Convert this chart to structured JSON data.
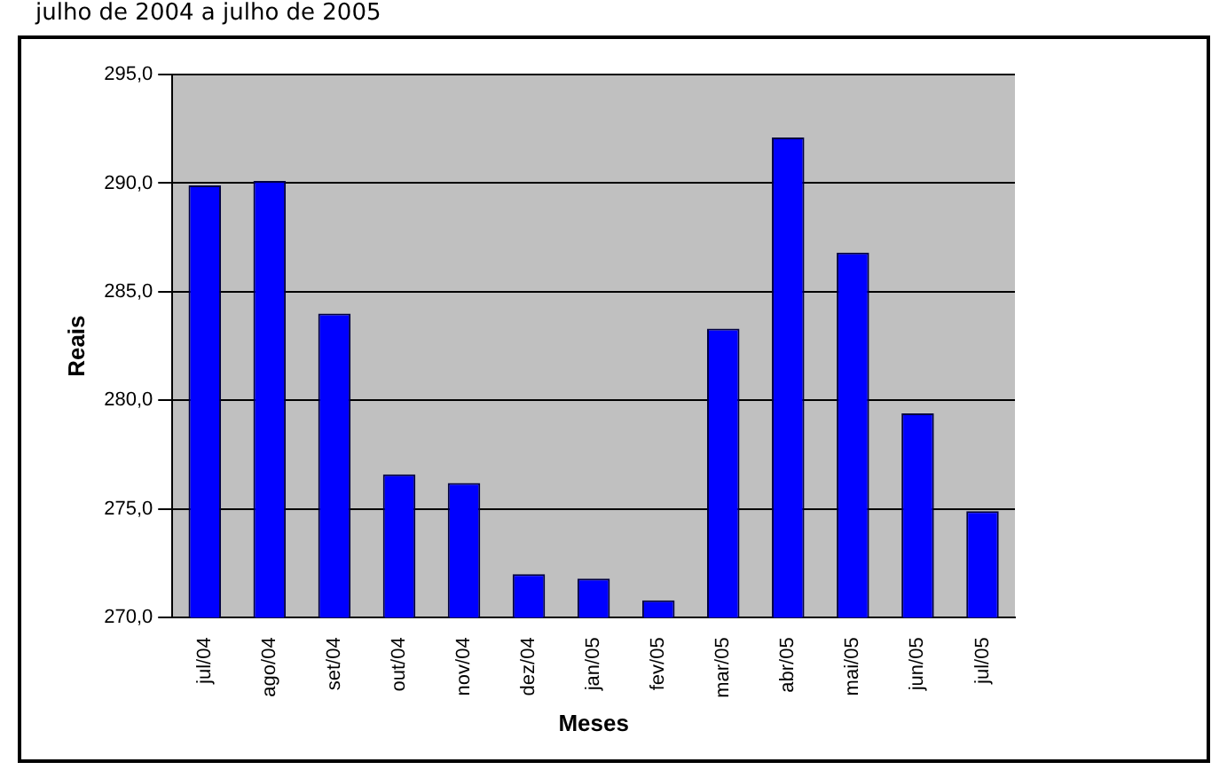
{
  "chart_data": {
    "type": "bar",
    "title": "julho de 2004 a julho de 2005",
    "xlabel": "Meses",
    "ylabel": "Reais",
    "categories": [
      "jul/04",
      "ago/04",
      "set/04",
      "out/04",
      "nov/04",
      "dez/04",
      "jan/05",
      "fev/05",
      "mar/05",
      "abr/05",
      "mai/05",
      "jun/05",
      "jul/05"
    ],
    "values": [
      289.9,
      290.1,
      284.0,
      276.6,
      276.2,
      272.0,
      271.8,
      270.8,
      283.3,
      292.1,
      286.8,
      279.4,
      274.9
    ],
    "color": "#0000ff",
    "ylim": [
      270,
      295
    ],
    "yticks": [
      {
        "value": 270,
        "label": "270,0"
      },
      {
        "value": 275,
        "label": "275,0"
      },
      {
        "value": 280,
        "label": "280,0"
      },
      {
        "value": 285,
        "label": "285,0"
      },
      {
        "value": 290,
        "label": "290,0"
      },
      {
        "value": 295,
        "label": "295,0"
      }
    ],
    "grid": "y"
  }
}
